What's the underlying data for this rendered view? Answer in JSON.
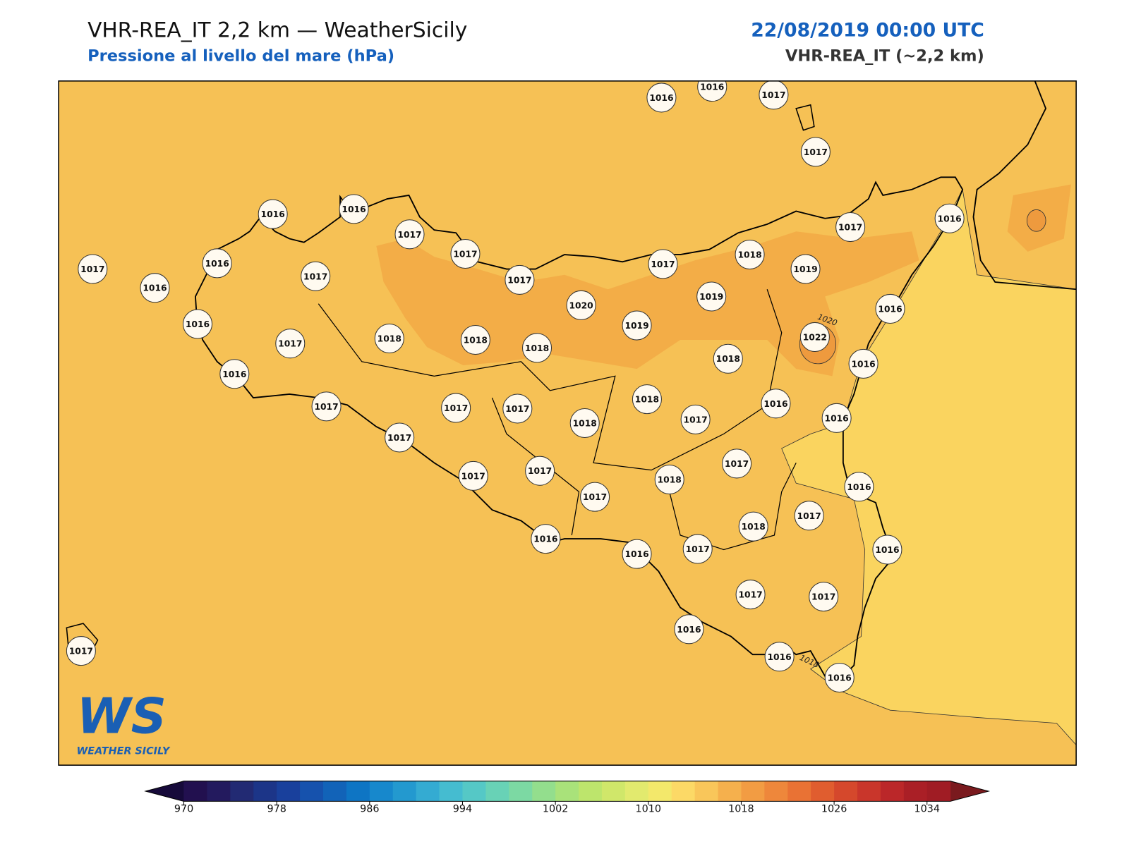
{
  "header": {
    "title": "VHR-REA_IT 2,2 km — WeatherSicily",
    "subtitle": "Pressione al livello del mare (hPa)",
    "datetime": "22/08/2019 00:00 UTC",
    "model": "VHR-REA_IT (~2,2 km)"
  },
  "map": {
    "stations": [
      1016,
      1016,
      1017,
      1017,
      1016,
      1016,
      1017,
      1017,
      1017,
      1016,
      1017,
      1016,
      1017,
      1017,
      1018,
      1017,
      1016,
      1019,
      1019,
      1020,
      1016,
      1016,
      1019,
      1022,
      1017,
      1018,
      1018,
      1018,
      1018,
      1016,
      1016,
      1017,
      1017,
      1017,
      1018,
      1018,
      1017,
      1016,
      1016,
      1017,
      1017,
      1017,
      1017,
      1018,
      1016,
      1017,
      1018,
      1017,
      1016,
      1016,
      1017,
      1016,
      1017,
      1017,
      1016,
      1016,
      1016,
      1017
    ],
    "contour_labels": [
      1020,
      1018
    ]
  },
  "logo": {
    "text": "WS",
    "subtext": "WEATHER SICILY"
  },
  "colorbar": {
    "lim": [
      970,
      1036
    ],
    "ticks": [
      970,
      978,
      986,
      994,
      1002,
      1010,
      1018,
      1026,
      1034
    ],
    "colors": [
      "#22104f",
      "#231a5e",
      "#222a73",
      "#1c3588",
      "#19409c",
      "#1652ad",
      "#1263b8",
      "#0e75c4",
      "#1788cc",
      "#2399cf",
      "#34abd2",
      "#45bcd0",
      "#55c8c6",
      "#68d2b6",
      "#7cd9a3",
      "#93de8d",
      "#a9e27a",
      "#bde56c",
      "#d0e76a",
      "#e2ea6e",
      "#f3e86b",
      "#fcd966",
      "#f9c65a",
      "#f5b04d",
      "#f29c43",
      "#ee873b",
      "#e97234",
      "#e05d2f",
      "#d5482c",
      "#c9362b",
      "#bb2729",
      "#aa1f26",
      "#a01c24"
    ],
    "under_color": "#160a3a",
    "over_color": "#7a1a1e"
  }
}
